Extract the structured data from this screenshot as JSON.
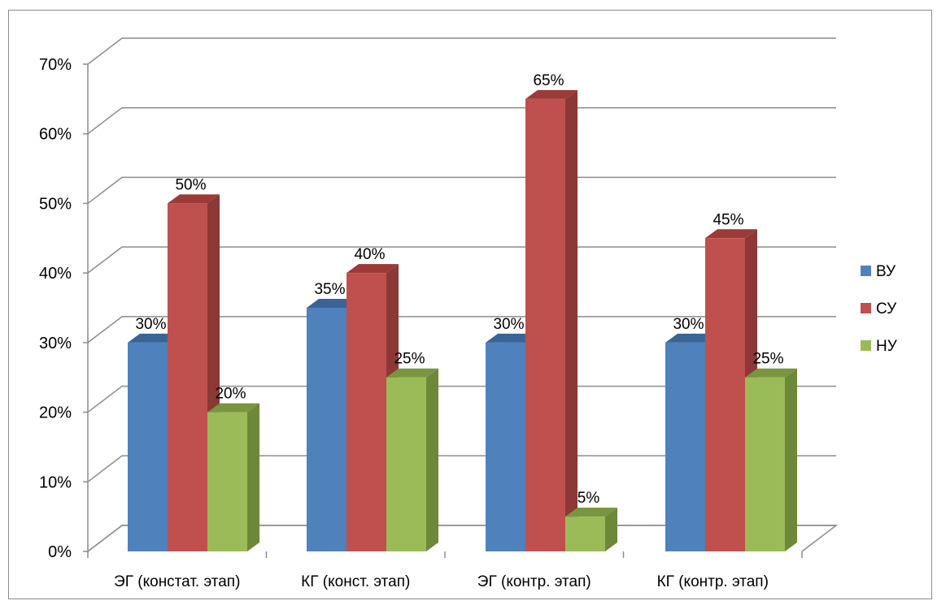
{
  "chart_data": {
    "type": "bar",
    "categories": [
      "ЭГ (констат. этап)",
      "КГ (конст. этап)",
      "ЭГ (контр. этап)",
      "КГ (контр. этап)"
    ],
    "series": [
      {
        "name": "ВУ",
        "values": [
          30,
          35,
          30,
          30
        ],
        "labels": [
          "30%",
          "35%",
          "30%",
          "30%"
        ],
        "color": "#4f81bd",
        "top": "#3a6496",
        "side": "#385d8a"
      },
      {
        "name": "СУ",
        "values": [
          50,
          40,
          65,
          45
        ],
        "labels": [
          "50%",
          "40%",
          "65%",
          "45%"
        ],
        "color": "#c0504d",
        "top": "#9b3a37",
        "side": "#8c3836"
      },
      {
        "name": "НУ",
        "values": [
          20,
          25,
          5,
          25
        ],
        "labels": [
          "20%",
          "25%",
          "5%",
          "25%"
        ],
        "color": "#9bbb59",
        "top": "#7a953f",
        "side": "#6d8838"
      }
    ],
    "y_ticks": [
      "0%",
      "10%",
      "20%",
      "30%",
      "40%",
      "50%",
      "60%",
      "70%"
    ],
    "ylim": [
      0,
      70
    ],
    "grid": true,
    "legend_position": "right",
    "title": "",
    "xlabel": "",
    "ylabel": ""
  }
}
